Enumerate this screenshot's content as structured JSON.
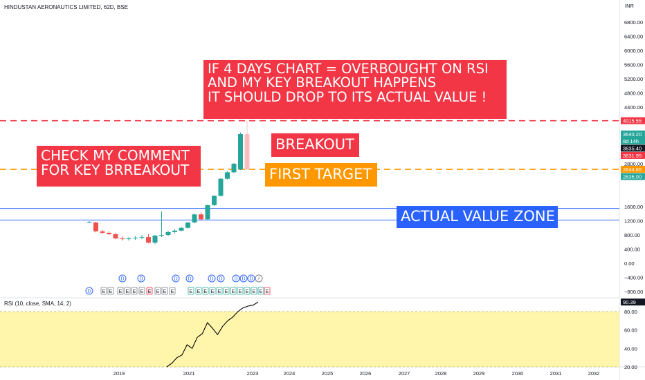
{
  "header": {
    "symbol_title": "HINDUSTAN AERONAUTICS LIMITED, 62D, BSE",
    "currency": "INR"
  },
  "colors": {
    "up": "#26a69a",
    "down": "#ef5350",
    "red_label": "#f23645",
    "orange": "#ff9800",
    "blue": "#2962ff",
    "rsi_line": "#000000",
    "rsi_band": "#fff59d"
  },
  "price_axis_labels": [
    "6800.00",
    "6400.00",
    "6000.00",
    "5600.00",
    "5200.00",
    "4800.00",
    "4400.00",
    "2800.00",
    "1600.00",
    "1200.00",
    "800.00",
    "400.00",
    "0.00",
    "−400.00",
    "−800.00"
  ],
  "price_badges": [
    {
      "text": "4015.55",
      "color": "#f23645",
      "value": 4015.55
    },
    {
      "text": "3640.20",
      "text2": "8d 14h",
      "color": "#26a69a",
      "value": 3640.2
    },
    {
      "text": "3635.40",
      "color": "#131722",
      "value": 3635.4
    },
    {
      "text": "3631.95",
      "color": "#f23645",
      "value": 3631.95
    },
    {
      "text": "2644.65",
      "color": "#ff9800",
      "value": 2644.65
    },
    {
      "text": "2635.00",
      "color": "#26a69a",
      "value": 2635.0
    }
  ],
  "rsi": {
    "title": "RSI (10, close, SMA, 14, 2)",
    "current": "90.39",
    "axis_labels": [
      "80.00",
      "60.00",
      "40.00",
      "20.00"
    ],
    "band": [
      20,
      80
    ],
    "values": [
      20,
      24,
      30,
      33,
      44,
      40,
      52,
      56,
      68,
      62,
      55,
      64,
      70,
      74,
      80,
      84,
      86,
      87,
      90.39
    ]
  },
  "time_axis_labels": [
    "2019",
    "2021",
    "2023",
    "2024",
    "2025",
    "2026",
    "2027",
    "2028",
    "2029",
    "2030",
    "2031",
    "2032"
  ],
  "annotations": {
    "main_lines": [
      "IF 4 DAYS CHART = OVERBOUGHT ON RSI",
      "AND MY KEY BREAKOUT HAPPENS",
      "IT SHOULD DROP TO ITS ACTUAL VALUE !"
    ],
    "breakout": "BREAKOUT",
    "comment_lines": [
      "CHECK MY COMMENT",
      "FOR KEY BRREAKOUT"
    ],
    "first_target": "FIRST TARGET",
    "actual_value_zone": "ACTUAL VALUE ZONE"
  },
  "event_markers": {
    "dividend_symbol": "D",
    "earnings_symbol": "E",
    "split_symbol": "⚡",
    "earnings_count": 22,
    "dividend_count": 10
  },
  "chart_data": {
    "type": "candlestick",
    "title": "HINDUSTAN AERONAUTICS LIMITED, 62D, BSE",
    "currency": "INR",
    "xlabel": "",
    "ylabel": "",
    "timeframe": "62D",
    "x_ticks": [
      "2019",
      "2021",
      "2023",
      "2024",
      "2025",
      "2026",
      "2027",
      "2028",
      "2029",
      "2030",
      "2031",
      "2032"
    ],
    "candles": [
      {
        "open": 1160,
        "high": 1190,
        "low": 1130,
        "close": 1160
      },
      {
        "open": 1150,
        "high": 1170,
        "low": 870,
        "close": 900
      },
      {
        "open": 900,
        "high": 940,
        "low": 820,
        "close": 860
      },
      {
        "open": 860,
        "high": 900,
        "low": 790,
        "close": 820
      },
      {
        "open": 820,
        "high": 860,
        "low": 680,
        "close": 700
      },
      {
        "open": 700,
        "high": 760,
        "low": 640,
        "close": 690
      },
      {
        "open": 690,
        "high": 740,
        "low": 640,
        "close": 700
      },
      {
        "open": 700,
        "high": 760,
        "low": 660,
        "close": 720
      },
      {
        "open": 720,
        "high": 800,
        "low": 680,
        "close": 740
      },
      {
        "open": 740,
        "high": 820,
        "low": 560,
        "close": 580
      },
      {
        "open": 580,
        "high": 800,
        "low": 540,
        "close": 780
      },
      {
        "open": 780,
        "high": 1460,
        "low": 740,
        "close": 800
      },
      {
        "open": 800,
        "high": 920,
        "low": 760,
        "close": 880
      },
      {
        "open": 880,
        "high": 960,
        "low": 840,
        "close": 920
      },
      {
        "open": 920,
        "high": 1020,
        "low": 900,
        "close": 1000
      },
      {
        "open": 1000,
        "high": 1160,
        "low": 980,
        "close": 1150
      },
      {
        "open": 1150,
        "high": 1400,
        "low": 1130,
        "close": 1380
      },
      {
        "open": 1380,
        "high": 1440,
        "low": 1200,
        "close": 1240
      },
      {
        "open": 1240,
        "high": 1660,
        "low": 1220,
        "close": 1640
      },
      {
        "open": 1640,
        "high": 1920,
        "low": 1610,
        "close": 1900
      },
      {
        "open": 1900,
        "high": 2400,
        "low": 1880,
        "close": 2380
      },
      {
        "open": 2380,
        "high": 2600,
        "low": 2360,
        "close": 2560
      },
      {
        "open": 2560,
        "high": 2820,
        "low": 2540,
        "close": 2800
      },
      {
        "open": 2640,
        "high": 3680,
        "low": 2620,
        "close": 3640
      },
      {
        "open": 3640,
        "high": 4020,
        "low": 2640,
        "close": 2640,
        "projection": true
      }
    ],
    "horizontal_lines": [
      {
        "value": 4015.55,
        "color": "#f23645",
        "style": "dashed"
      },
      {
        "value": 2644.65,
        "color": "#ff9800",
        "style": "dashed"
      },
      {
        "value": 1550,
        "color": "#2962ff",
        "style": "solid"
      },
      {
        "value": 1220,
        "color": "#2962ff",
        "style": "solid"
      }
    ],
    "rsi": {
      "period": 10,
      "source": "close",
      "ma": "SMA",
      "ma_length": 14,
      "bands": [
        20,
        80
      ],
      "last": 90.39
    }
  }
}
